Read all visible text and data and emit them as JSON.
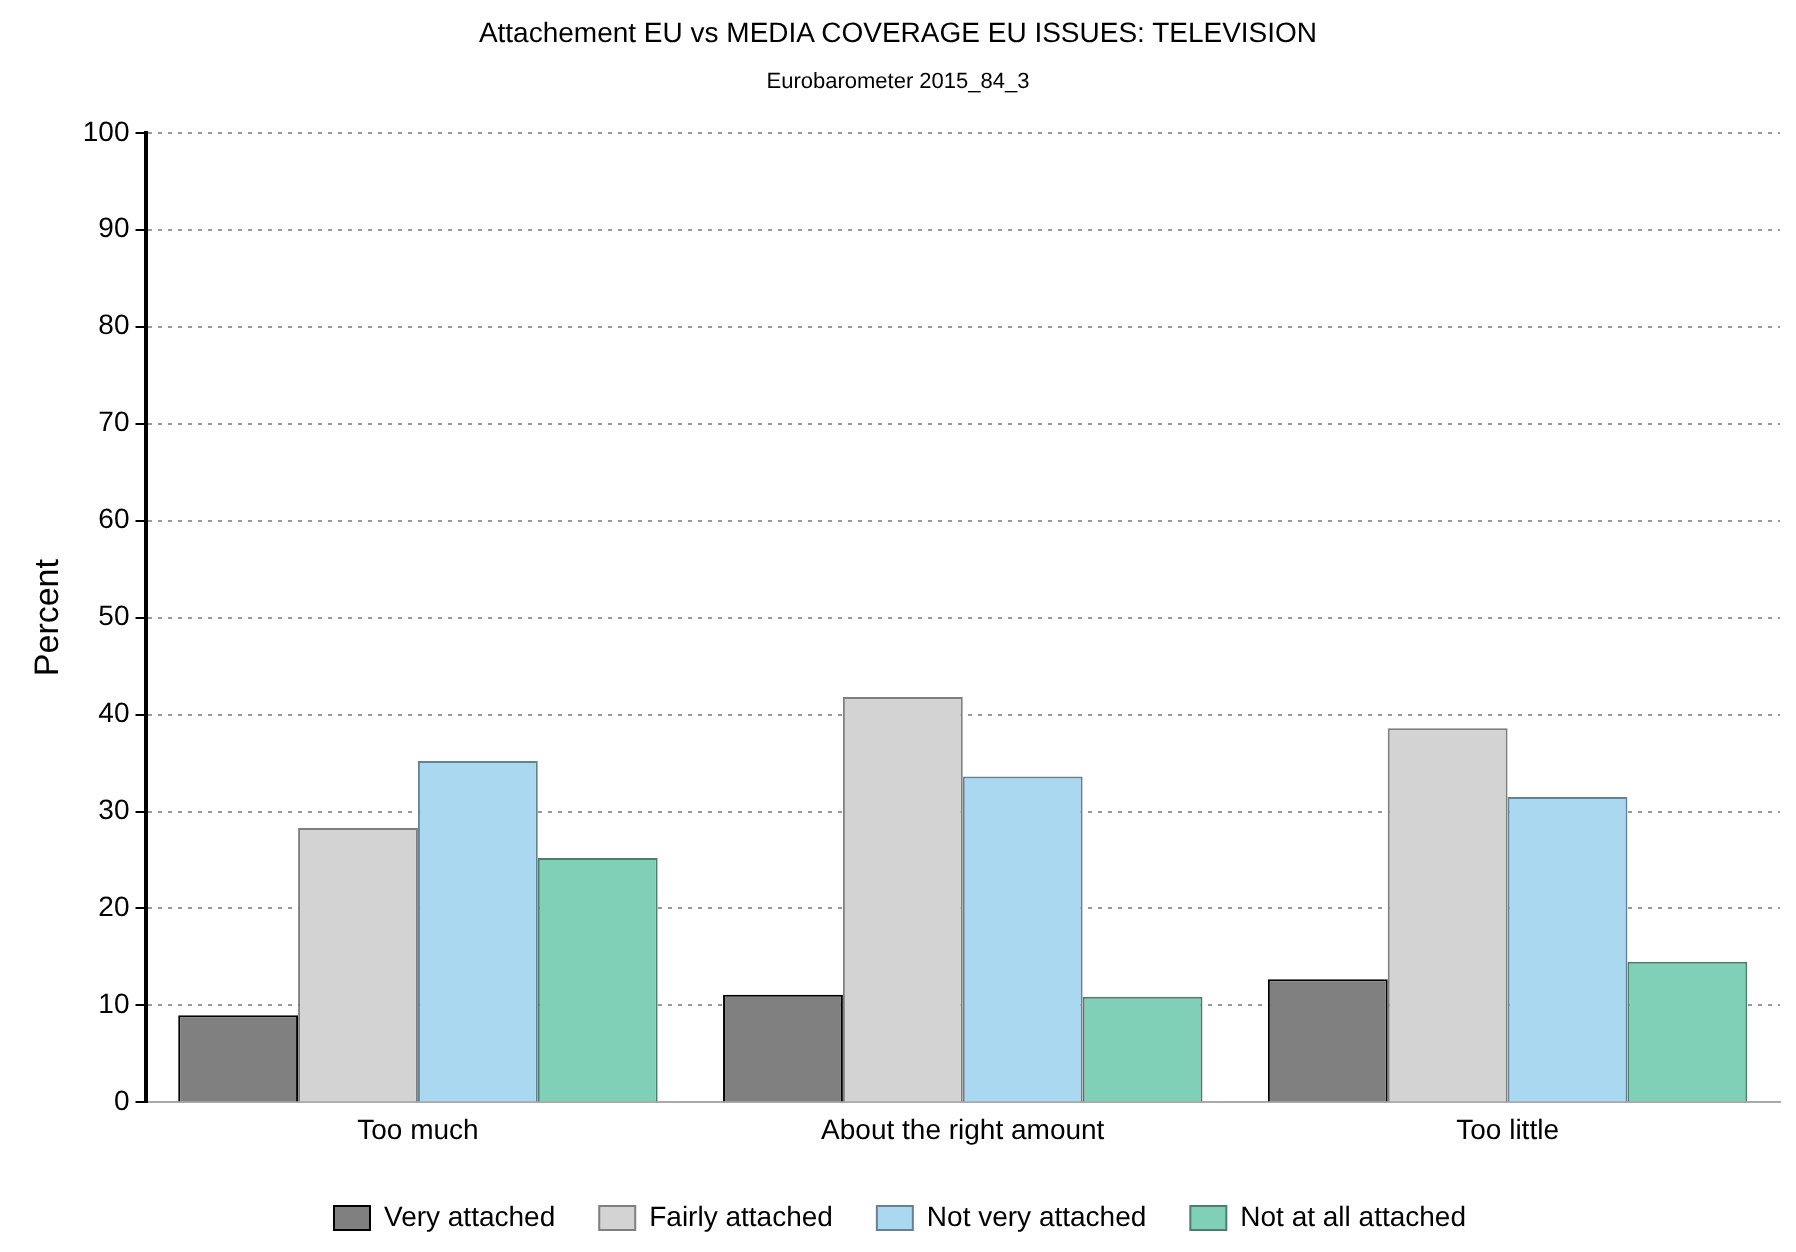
{
  "chart_data": {
    "type": "bar",
    "title": "Attachement EU vs MEDIA COVERAGE EU ISSUES: TELEVISION",
    "subtitle": "Eurobarometer 2015_84_3",
    "ylabel": "Percent",
    "categories": [
      "Too much",
      "About the right amount",
      "Too little"
    ],
    "series": [
      {
        "name": "Very attached",
        "color": "#808080",
        "values": [
          9.0,
          11.1,
          12.7
        ]
      },
      {
        "name": "Fairly attached",
        "color": "#d3d3d3",
        "values": [
          28.3,
          41.8,
          38.6
        ]
      },
      {
        "name": "Not very attached",
        "color": "#aad8f0",
        "values": [
          35.2,
          33.6,
          31.5
        ]
      },
      {
        "name": "Not at all attached",
        "color": "#80d0b8",
        "values": [
          25.2,
          10.9,
          14.5
        ]
      }
    ],
    "ylim": [
      0,
      100
    ],
    "yticks": [
      0,
      10,
      20,
      30,
      40,
      50,
      60,
      70,
      80,
      90,
      100
    ],
    "grid": "y",
    "legend": "bottom"
  }
}
